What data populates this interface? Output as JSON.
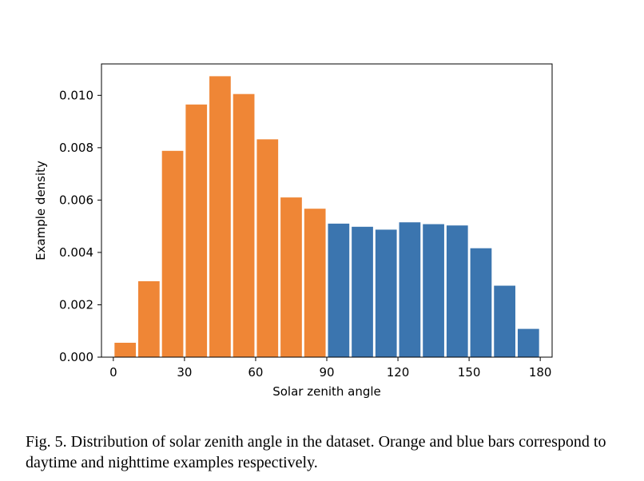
{
  "chart_data": {
    "type": "bar",
    "xlabel": "Solar zenith angle",
    "ylabel": "Example density",
    "xlim": [
      -5,
      185
    ],
    "ylim": [
      0,
      0.0112
    ],
    "xticks": [
      0,
      30,
      60,
      90,
      120,
      150,
      180
    ],
    "xtick_labels": [
      "0",
      "30",
      "60",
      "90",
      "120",
      "150",
      "180"
    ],
    "yticks": [
      0,
      0.002,
      0.004,
      0.006,
      0.008,
      0.01
    ],
    "ytick_labels": [
      "0.000",
      "0.002",
      "0.004",
      "0.006",
      "0.008",
      "0.010"
    ],
    "bin_width": 10,
    "bar_width_fraction": 0.9,
    "grid": false,
    "series": [
      {
        "color": "#ef8636",
        "bin_starts": [
          0,
          10,
          20,
          30,
          40,
          50,
          60,
          70,
          80
        ],
        "values": [
          0.00055,
          0.0029,
          0.00788,
          0.00965,
          0.01073,
          0.01005,
          0.00832,
          0.0061,
          0.00567
        ]
      },
      {
        "color": "#3b75af",
        "bin_starts": [
          90,
          100,
          110,
          120,
          130,
          140,
          150,
          160,
          170
        ],
        "values": [
          0.0051,
          0.00498,
          0.00487,
          0.00515,
          0.00508,
          0.00503,
          0.00416,
          0.00273,
          0.00108
        ]
      }
    ]
  },
  "caption": "Fig. 5.  Distribution of solar zenith angle in the dataset. Orange and blue bars correspond to daytime and nighttime examples respectively."
}
